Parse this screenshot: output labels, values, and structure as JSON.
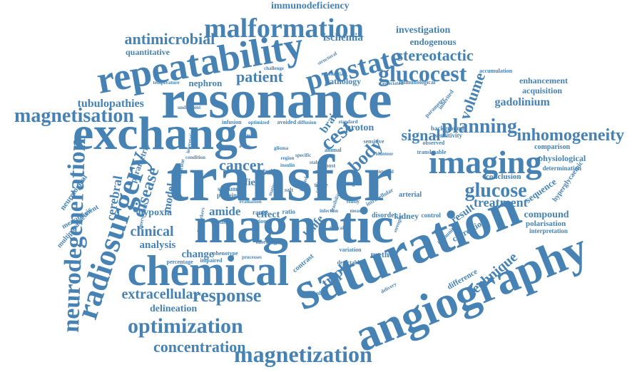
{
  "theme": {
    "word_color": "#4682b4",
    "background": "#ffffff"
  },
  "words": [
    "transfer",
    "resonance",
    "saturation",
    "exchange",
    "magnetic",
    "angiography",
    "chemical",
    "repeatability",
    "imaging",
    "malformation",
    "prostate",
    "glucocest",
    "radiosurgery",
    "neurodegeneration",
    "magnetization",
    "inhomogeneity",
    "optimization",
    "magnetisation",
    "response",
    "concentration",
    "glucose",
    "extracellular",
    "planning",
    "stereotactic",
    "antimicrobial",
    "patient",
    "cancer",
    "clinical",
    "signal",
    "disease",
    "triple",
    "technique",
    "cest",
    "volume",
    "body",
    "tubulopathies",
    "model",
    "cerebral",
    "treatment",
    "gadolinium",
    "amide",
    "hypoxia",
    "analysis",
    "change",
    "delineation",
    "ischemia",
    "investigation",
    "endogenous",
    "immunodeficiency",
    "quantitative",
    "nephron",
    "proton",
    "sequence",
    "compound",
    "physiological",
    "enhancement",
    "acquisition",
    "pathology",
    "effect",
    "knife",
    "brain",
    "result",
    "field",
    "correction",
    "difference",
    "polarisation",
    "parametric",
    "neurological",
    "multiparametric",
    "measurement",
    "conclusion",
    "kidney",
    "method",
    "contrast",
    "interpretation",
    "determination",
    "comparison",
    "hyperglycaemic",
    "sensitivity",
    "background",
    "arterial",
    "disorder",
    "control",
    "range",
    "ratio",
    "various",
    "sodium",
    "protein",
    "phenotype",
    "impaired",
    "percentage",
    "metabolite",
    "labelling",
    "detectable",
    "variation",
    "immunity",
    "intracellular",
    "observed",
    "translatable",
    "parameter",
    "inherited",
    "accumulation",
    "immunological",
    "associated",
    "substantial",
    "structural",
    "challenge",
    "temperature",
    "underwent",
    "infusion",
    "optimized",
    "avoided",
    "diffusion",
    "standard",
    "volunteer",
    "sensitive",
    "animal",
    "post",
    "mouse",
    "target",
    "study",
    "glioma",
    "salt",
    "cell",
    "biomarkers",
    "intervention",
    "information",
    "condition",
    "coefficient",
    "region",
    "insulin",
    "measure",
    "interval",
    "healthy",
    "delivery",
    "strength",
    "processes",
    "evaluation",
    "matter",
    "infection",
    "feasibility",
    "lesion",
    "reliable",
    "limited",
    "typical",
    "specific",
    "stable",
    "avms",
    "tissue"
  ]
}
